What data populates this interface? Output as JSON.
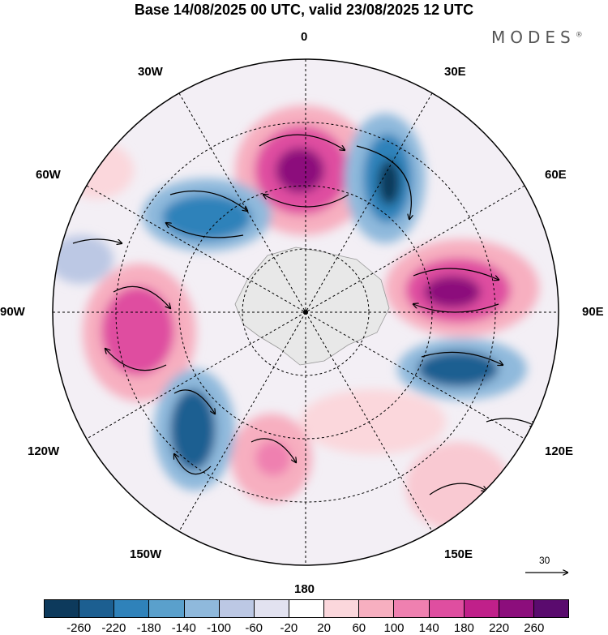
{
  "title": "Base 14/08/2025 00 UTC, valid 23/08/2025 12 UTC",
  "brand": "MODES",
  "brand_mark": "®",
  "longitude_labels": {
    "top": "0",
    "bottom": "180",
    "left": "90W",
    "right": "90E",
    "nw1": "30W",
    "nw2": "60W",
    "ne1": "30E",
    "ne2": "60E",
    "sw1": "120W",
    "sw2": "150W",
    "se1": "120E",
    "se2": "150E"
  },
  "vector_scale_label": "30",
  "colorbar": {
    "colors": [
      "#0d3a5c",
      "#1c5f91",
      "#2f82ba",
      "#5aa0cc",
      "#8fb9dc",
      "#bcc8e4",
      "#e2e2f0",
      "#ffffff",
      "#fbd7dc",
      "#f7afc0",
      "#ef80b0",
      "#df4ea0",
      "#c0208a",
      "#8c0e7c",
      "#5a0b6e"
    ],
    "ticks": [
      "-260",
      "-220",
      "-180",
      "-140",
      "-100",
      "-60",
      "-20",
      "20",
      "60",
      "100",
      "140",
      "180",
      "220",
      "260"
    ]
  }
}
